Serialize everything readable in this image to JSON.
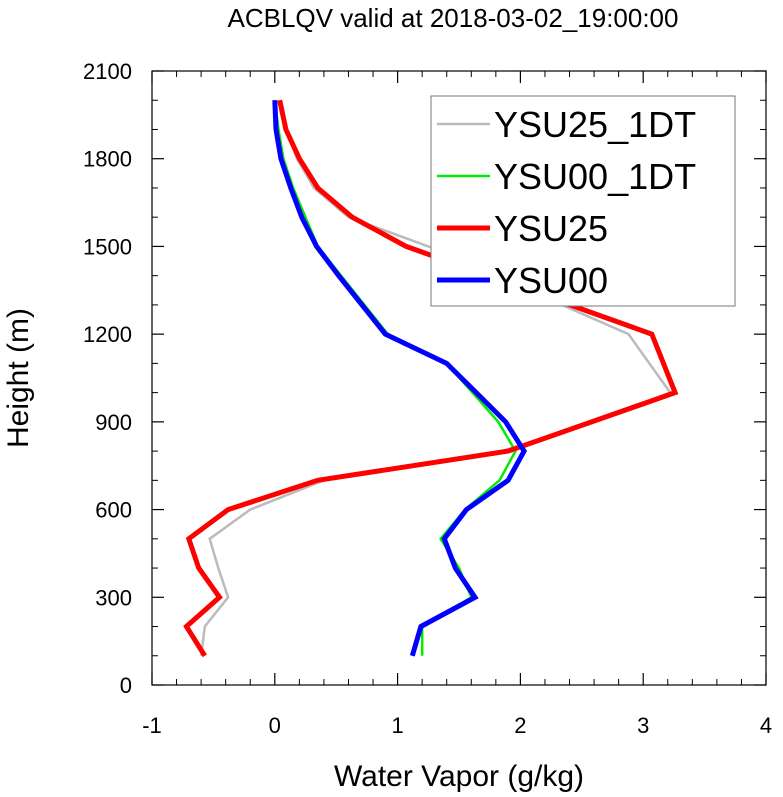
{
  "chart_data": {
    "type": "line",
    "title": "ACBLQV valid at 2018-03-02_19:00:00",
    "xlabel": "Water Vapor (g/kg)",
    "ylabel": "Height (m)",
    "xlim": [
      -1,
      4
    ],
    "ylim": [
      0,
      2100
    ],
    "xticks": [
      "-1",
      "0",
      "1",
      "2",
      "3",
      "4"
    ],
    "yticks": [
      "0",
      "300",
      "600",
      "900",
      "1200",
      "1500",
      "1800",
      "2100"
    ],
    "legend_position": "top-right",
    "series": [
      {
        "name": "YSU25_1DT",
        "color": "#bbbbbb",
        "width": 2.5,
        "points": [
          [
            -0.6,
            100
          ],
          [
            -0.57,
            200
          ],
          [
            -0.38,
            300
          ],
          [
            -0.46,
            400
          ],
          [
            -0.53,
            500
          ],
          [
            -0.2,
            600
          ],
          [
            0.4,
            700
          ],
          [
            1.85,
            800
          ],
          [
            2.6,
            900
          ],
          [
            3.22,
            1000
          ],
          [
            2.88,
            1200
          ],
          [
            1.25,
            1500
          ],
          [
            0.6,
            1600
          ],
          [
            0.32,
            1700
          ],
          [
            0.18,
            1800
          ],
          [
            0.1,
            1900
          ],
          [
            0.05,
            2000
          ]
        ]
      },
      {
        "name": "YSU00_1DT",
        "color": "#00ee00",
        "width": 2.5,
        "points": [
          [
            1.2,
            100
          ],
          [
            1.2,
            200
          ],
          [
            1.6,
            300
          ],
          [
            1.5,
            400
          ],
          [
            1.35,
            500
          ],
          [
            1.55,
            600
          ],
          [
            1.83,
            700
          ],
          [
            1.96,
            800
          ],
          [
            1.82,
            900
          ],
          [
            1.4,
            1100
          ],
          [
            0.92,
            1200
          ],
          [
            0.54,
            1400
          ],
          [
            0.35,
            1500
          ],
          [
            0.25,
            1600
          ],
          [
            0.15,
            1700
          ],
          [
            0.07,
            1800
          ],
          [
            0.03,
            1900
          ],
          [
            0.0,
            2000
          ]
        ]
      },
      {
        "name": "YSU25",
        "color": "#ff0000",
        "width": 5,
        "points": [
          [
            -0.57,
            100
          ],
          [
            -0.72,
            200
          ],
          [
            -0.45,
            300
          ],
          [
            -0.62,
            400
          ],
          [
            -0.7,
            500
          ],
          [
            -0.38,
            600
          ],
          [
            0.35,
            700
          ],
          [
            1.9,
            800
          ],
          [
            2.58,
            900
          ],
          [
            3.26,
            1000
          ],
          [
            3.07,
            1200
          ],
          [
            1.07,
            1500
          ],
          [
            0.63,
            1600
          ],
          [
            0.35,
            1700
          ],
          [
            0.2,
            1800
          ],
          [
            0.09,
            1900
          ],
          [
            0.04,
            2000
          ]
        ]
      },
      {
        "name": "YSU00",
        "color": "#0000ff",
        "width": 5,
        "points": [
          [
            1.12,
            100
          ],
          [
            1.19,
            200
          ],
          [
            1.63,
            300
          ],
          [
            1.47,
            400
          ],
          [
            1.38,
            500
          ],
          [
            1.56,
            600
          ],
          [
            1.9,
            700
          ],
          [
            2.03,
            800
          ],
          [
            1.88,
            900
          ],
          [
            1.4,
            1100
          ],
          [
            0.9,
            1200
          ],
          [
            0.52,
            1400
          ],
          [
            0.34,
            1500
          ],
          [
            0.22,
            1600
          ],
          [
            0.13,
            1700
          ],
          [
            0.05,
            1800
          ],
          [
            0.01,
            1900
          ],
          [
            0.0,
            2000
          ]
        ]
      }
    ]
  }
}
